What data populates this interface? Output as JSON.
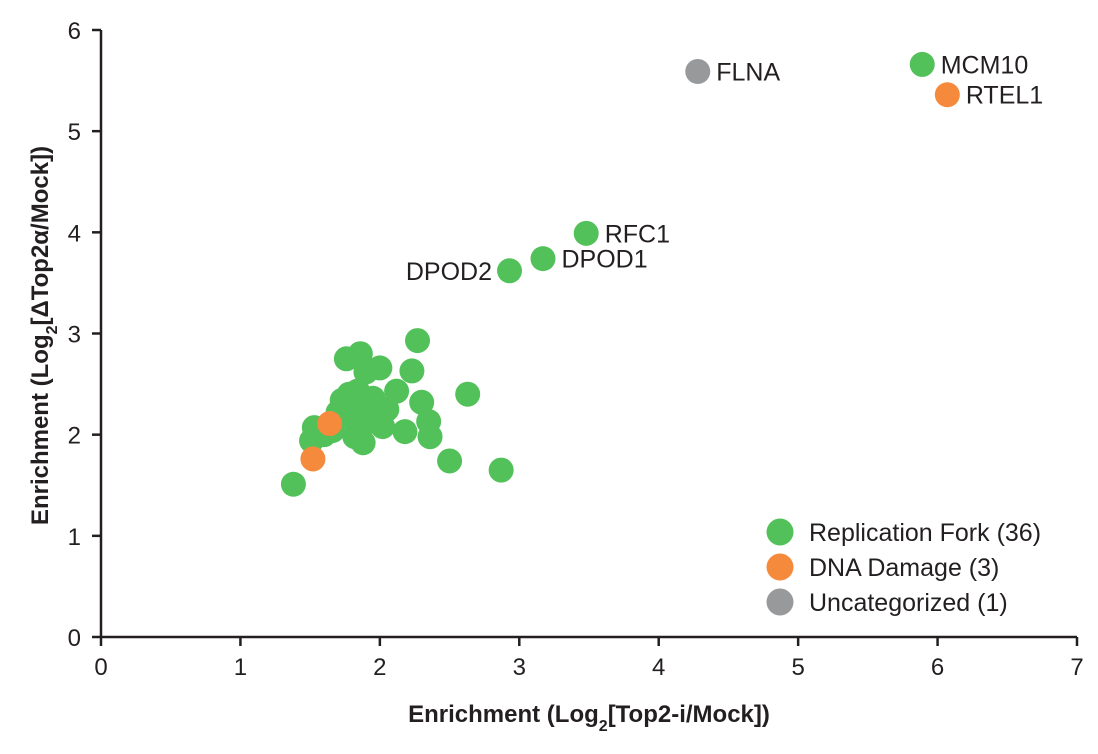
{
  "colors": {
    "replication_fork": "#52c15a",
    "dna_damage": "#f58a3c",
    "uncategorized": "#97999b",
    "axis": "#231f20"
  },
  "chart_data": {
    "type": "scatter",
    "xlabel": "Enrichment (Log2[Top2-i/Mock])",
    "ylabel": "Enrichment (Log2[ΔTop2α/Mock])",
    "xlim": [
      0,
      7
    ],
    "ylim": [
      0,
      6
    ],
    "xticks": [
      "0",
      "1",
      "2",
      "3",
      "4",
      "5",
      "6",
      "7"
    ],
    "yticks": [
      "0",
      "1",
      "2",
      "3",
      "4",
      "5",
      "6"
    ],
    "grid": false,
    "legend_position": "bottom-right",
    "series": [
      {
        "name": "Replication Fork (36)",
        "color_key": "replication_fork",
        "points": [
          {
            "x": 5.89,
            "y": 5.66,
            "label": "MCM10"
          },
          {
            "x": 3.48,
            "y": 3.99,
            "label": "RFC1"
          },
          {
            "x": 3.17,
            "y": 3.74,
            "label": "DPOD1"
          },
          {
            "x": 2.93,
            "y": 3.62,
            "label": "DPOD2"
          },
          {
            "x": 1.38,
            "y": 1.51
          },
          {
            "x": 1.51,
            "y": 1.94
          },
          {
            "x": 1.53,
            "y": 2.07
          },
          {
            "x": 1.66,
            "y": 2.04
          },
          {
            "x": 1.7,
            "y": 2.22
          },
          {
            "x": 1.73,
            "y": 2.34
          },
          {
            "x": 1.76,
            "y": 2.75
          },
          {
            "x": 1.8,
            "y": 2.16
          },
          {
            "x": 1.82,
            "y": 1.98
          },
          {
            "x": 1.84,
            "y": 2.43
          },
          {
            "x": 1.86,
            "y": 2.8
          },
          {
            "x": 1.88,
            "y": 2.3
          },
          {
            "x": 1.88,
            "y": 1.92
          },
          {
            "x": 1.9,
            "y": 2.62
          },
          {
            "x": 1.92,
            "y": 2.13
          },
          {
            "x": 1.95,
            "y": 2.36
          },
          {
            "x": 1.97,
            "y": 2.22
          },
          {
            "x": 2.0,
            "y": 2.66
          },
          {
            "x": 2.02,
            "y": 2.08
          },
          {
            "x": 2.12,
            "y": 2.43
          },
          {
            "x": 2.18,
            "y": 2.03
          },
          {
            "x": 2.23,
            "y": 2.63
          },
          {
            "x": 2.27,
            "y": 2.93
          },
          {
            "x": 2.3,
            "y": 2.32
          },
          {
            "x": 2.35,
            "y": 2.13
          },
          {
            "x": 2.36,
            "y": 1.98
          },
          {
            "x": 2.5,
            "y": 1.74
          },
          {
            "x": 2.63,
            "y": 2.4
          },
          {
            "x": 2.87,
            "y": 1.65
          },
          {
            "x": 1.6,
            "y": 2.0
          },
          {
            "x": 2.05,
            "y": 2.25
          },
          {
            "x": 1.78,
            "y": 2.4
          }
        ]
      },
      {
        "name": "DNA Damage (3)",
        "color_key": "dna_damage",
        "points": [
          {
            "x": 6.07,
            "y": 5.36,
            "label": "RTEL1"
          },
          {
            "x": 1.64,
            "y": 2.11
          },
          {
            "x": 1.52,
            "y": 1.76
          }
        ]
      },
      {
        "name": "Uncategorized (1)",
        "color_key": "uncategorized",
        "points": [
          {
            "x": 4.28,
            "y": 5.59,
            "label": "FLNA"
          }
        ]
      }
    ]
  }
}
